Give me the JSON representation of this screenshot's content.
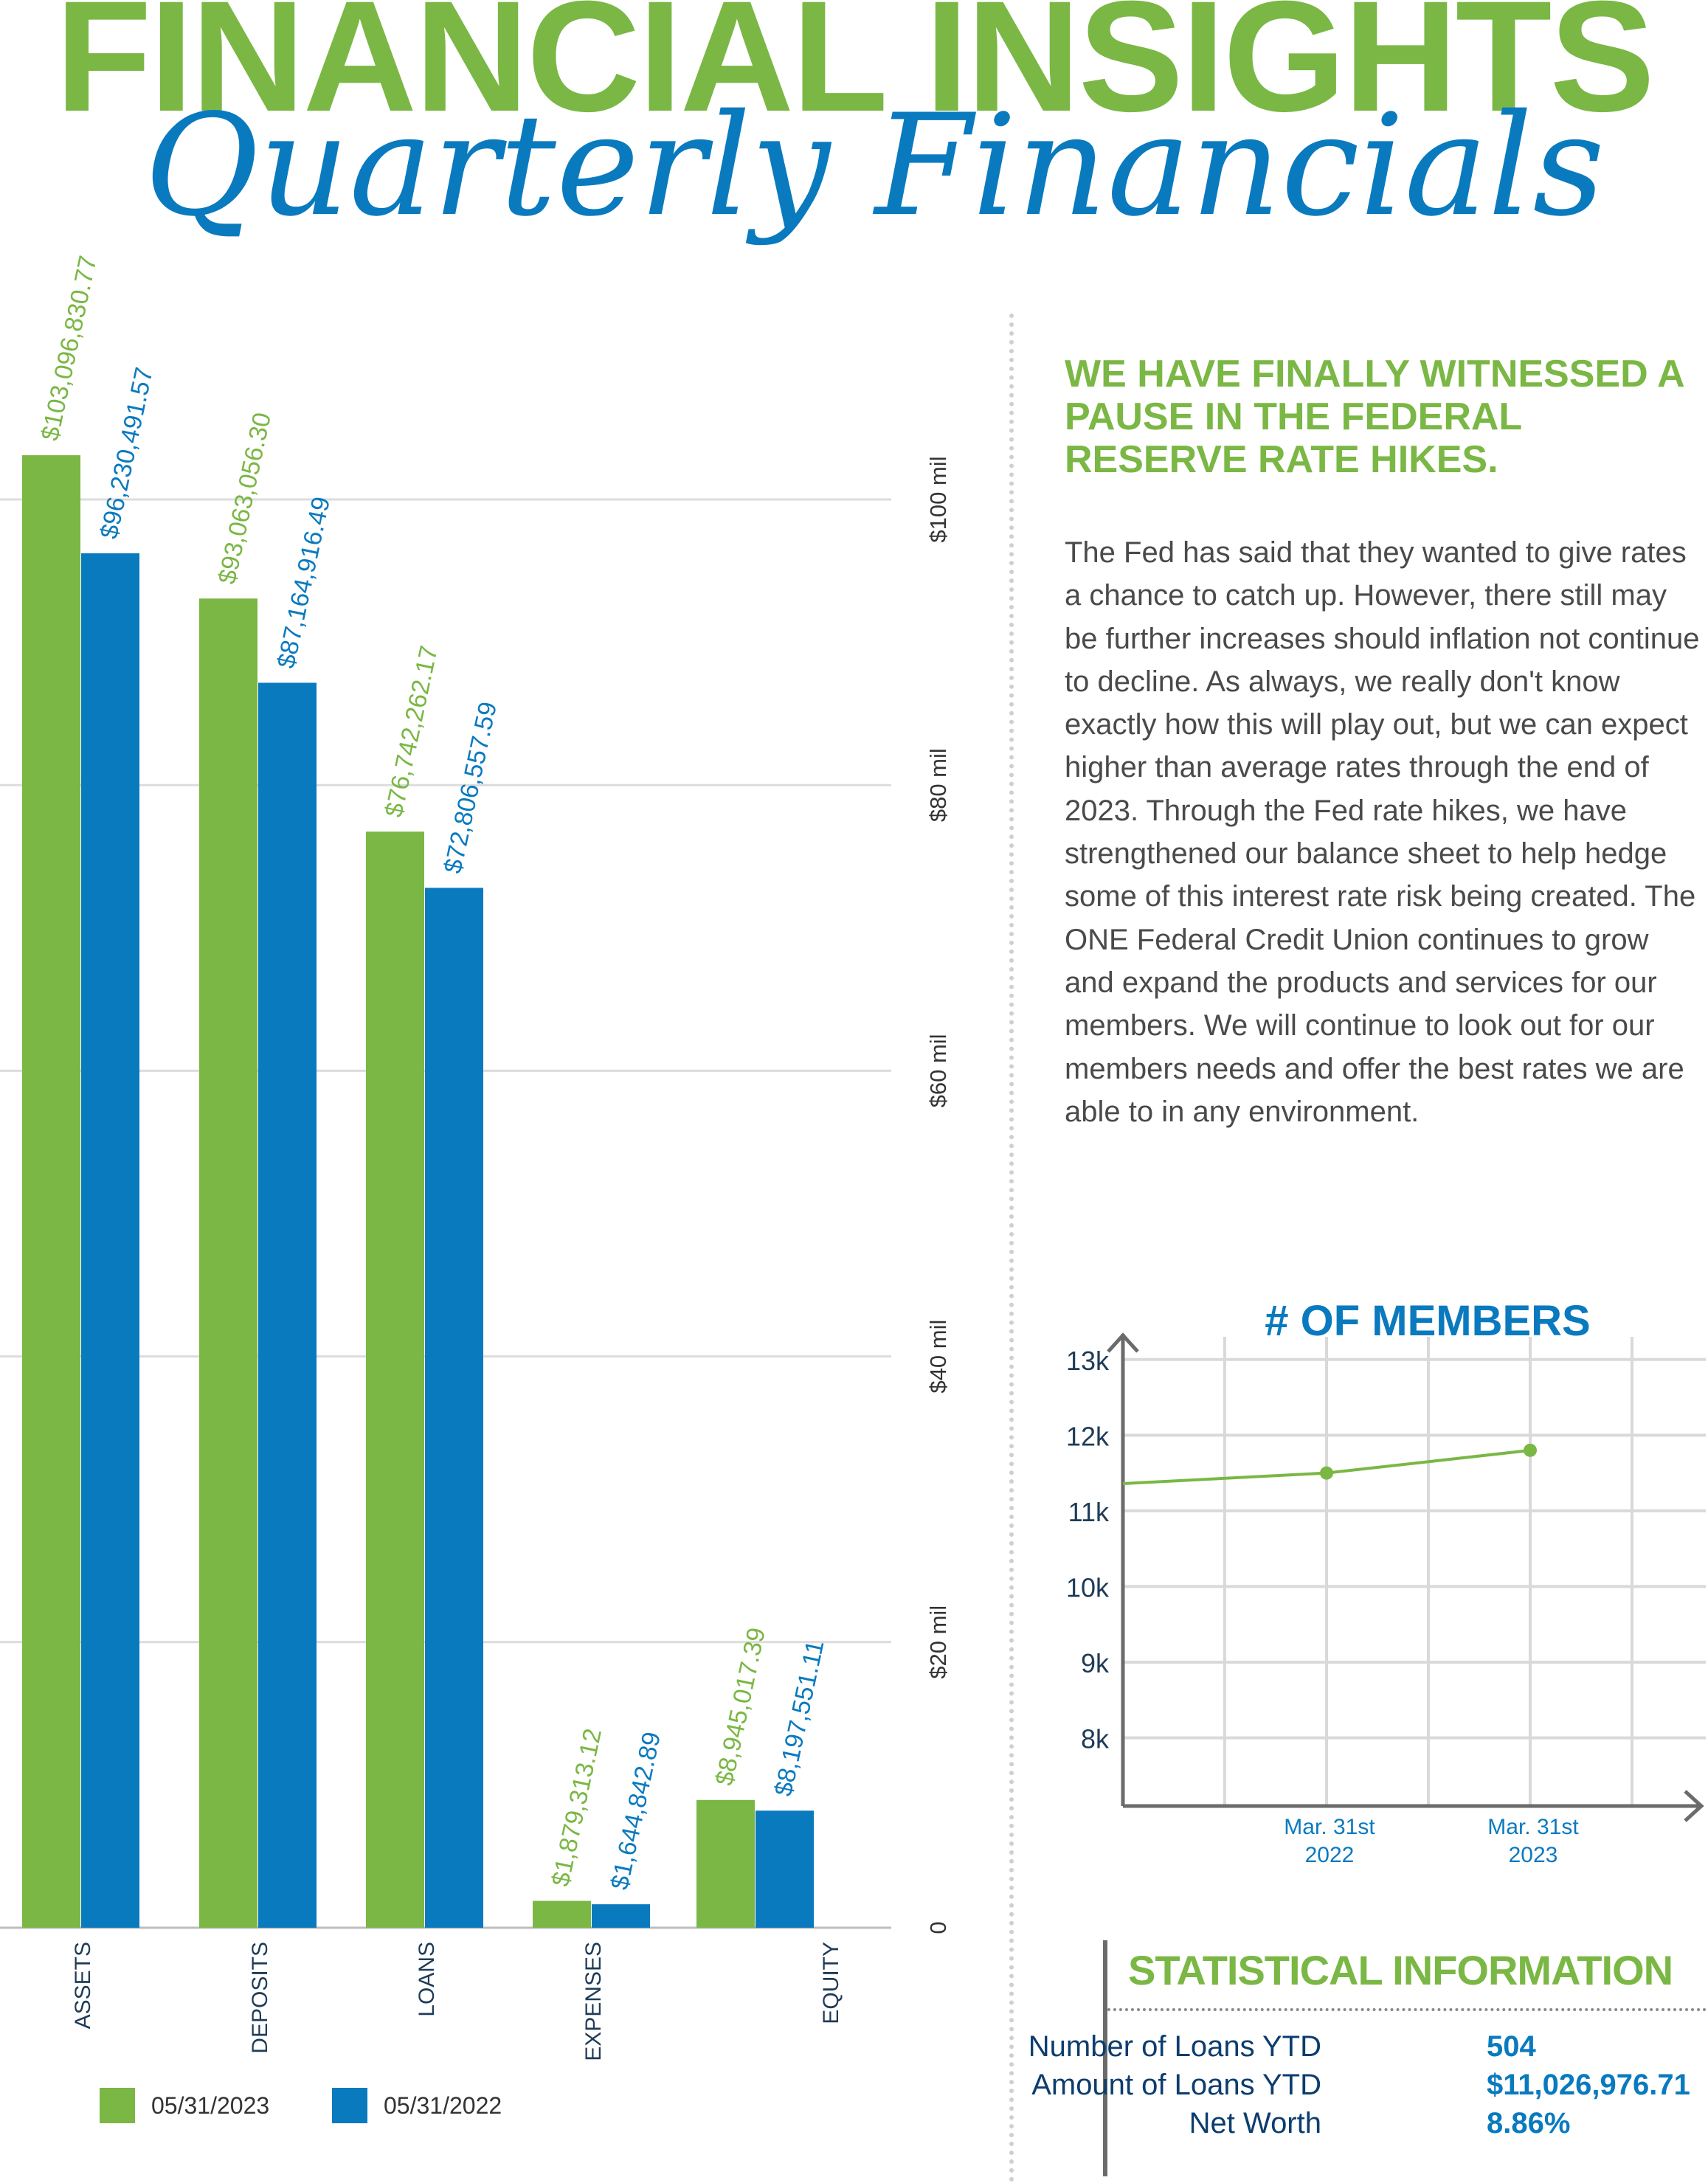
{
  "header": {
    "title": "FINANCIAL INSIGHTS",
    "subtitle": "Quarterly Financials"
  },
  "article": {
    "heading": "WE HAVE FINALLY WITNESSED A PAUSE IN THE FEDERAL RESERVE RATE HIKES.",
    "body": "The Fed has said that they wanted to give rates a chance to catch up. However, there still may be further increases should inflation not continue to decline. As always, we really don't know exactly how this will play out, but we can expect higher than average rates through the end of 2023. Through the Fed rate hikes, we have strengthened our balance sheet to help hedge some of this interest rate risk being created. The ONE Federal Credit Union continues to grow and expand the products and services for our members. We will continue to look out for our members needs and offer the best rates we are able to in any environment."
  },
  "statistics": {
    "title": "STATISTICAL INFORMATION",
    "rows": [
      {
        "label": "Number of Loans YTD",
        "value": "504"
      },
      {
        "label": "Amount of Loans YTD",
        "value": "$11,026,976.71"
      },
      {
        "label": "Net Worth",
        "value": "8.86%"
      }
    ]
  },
  "colors": {
    "green": "#7ab744",
    "blue": "#0a7abf",
    "grid": "#d9d9d9",
    "text": "#4a4a4a"
  },
  "chart_data": [
    {
      "type": "bar",
      "title": "",
      "categories": [
        "ASSETS",
        "DEPOSITS",
        "LOANS",
        "EXPENSES",
        "EQUITY"
      ],
      "series": [
        {
          "name": "05/31/2023",
          "color": "#7ab744",
          "values": [
            103096830.77,
            93063056.3,
            76742262.17,
            1879313.12,
            8945017.39
          ],
          "labels": [
            "$103,096,830.77",
            "$93,063,056.30",
            "$76,742,262.17",
            "$1,879,313.12",
            "$8,945,017.39"
          ]
        },
        {
          "name": "05/31/2022",
          "color": "#0a7abf",
          "values": [
            96230491.57,
            87164916.49,
            72806557.59,
            1644842.89,
            8197551.11
          ],
          "labels": [
            "$96,230,491.57",
            "$87,164,916.49",
            "$72,806,557.59",
            "$1,644,842.89",
            "$8,197,551.11"
          ]
        }
      ],
      "yticks": [
        0,
        20000000,
        40000000,
        60000000,
        80000000,
        100000000
      ],
      "ytick_labels": [
        "0",
        "$20 mil",
        "$40 mil",
        "$60 mil",
        "$80 mil",
        "$100 mil"
      ],
      "ylim": [
        0,
        110000000
      ],
      "xlabel": "",
      "ylabel": "",
      "legend": "bottom-left",
      "grid": true
    },
    {
      "type": "line",
      "title": "# OF MEMBERS",
      "x": [
        "",
        "Mar. 31st 2022",
        "Mar. 31st 2023"
      ],
      "x_labels": [
        {
          "line1": "Mar. 31st",
          "line2": "2022"
        },
        {
          "line1": "Mar. 31st",
          "line2": "2023"
        }
      ],
      "series": [
        {
          "name": "Members",
          "color": "#7ab744",
          "values": [
            11360,
            11500,
            11800
          ]
        }
      ],
      "yticks": [
        8000,
        9000,
        10000,
        11000,
        12000,
        13000
      ],
      "ytick_labels": [
        "8k",
        "9k",
        "10k",
        "11k",
        "12k",
        "13k"
      ],
      "ylim": [
        7100,
        13300
      ],
      "xlabel": "",
      "ylabel": "",
      "grid": true
    }
  ]
}
